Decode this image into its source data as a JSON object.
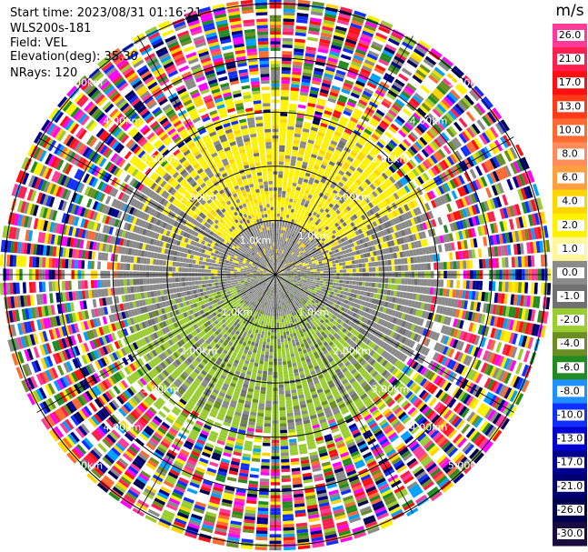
{
  "header": {
    "start_time": "Start time: 2023/08/31 01:16:21",
    "instrument": "WLS200s-181",
    "field": "Field: VEL",
    "elevation": "Elevation(deg): 35.30",
    "nrays": "NRays: 120"
  },
  "chart_data": {
    "type": "heatmap",
    "projection": "polar-ppi",
    "field": "VEL",
    "units": "m/s",
    "nrays": 120,
    "elevation_deg": 35.3,
    "range_rings_km": [
      1.0,
      2.0,
      3.0,
      4.0,
      5.0
    ],
    "range_ring_labels": [
      "1.0km",
      "2.00km",
      "3.00km",
      "4.00km",
      "5.00km"
    ],
    "colorbar": {
      "label": "m/s",
      "tick_labels": [
        "26.0",
        "21.0",
        "17.0",
        "13.0",
        "10.0",
        "8.0",
        "6.0",
        "4.0",
        "2.0",
        "1.0",
        "0.0",
        "-1.0",
        "-2.0",
        "-4.0",
        "-6.0",
        "-8.0",
        "-10.0",
        "-13.0",
        "-17.0",
        "-21.0",
        "-26.0",
        "-30.0"
      ],
      "colors": [
        "#ff3a9a",
        "#ff1f4e",
        "#ff1010",
        "#ff3a18",
        "#ff6a33",
        "#ff8c5a",
        "#ffa040",
        "#ffd400",
        "#fff200",
        "#fff799",
        "#8a8a8a",
        "#707070",
        "#9acd32",
        "#6b8e23",
        "#228b22",
        "#1e90ff",
        "#1030ff",
        "#0000d0",
        "#000090",
        "#000070",
        "#000050",
        "#1a0a40"
      ]
    }
  }
}
